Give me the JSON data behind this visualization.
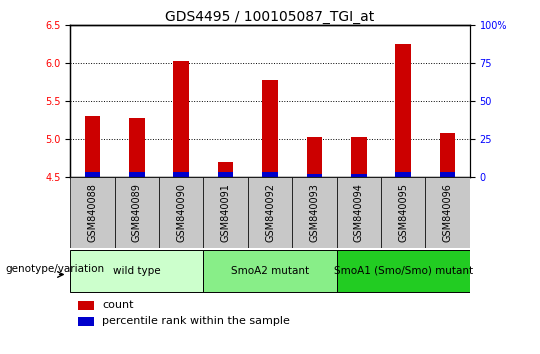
{
  "title": "GDS4495 / 100105087_TGI_at",
  "samples": [
    "GSM840088",
    "GSM840089",
    "GSM840090",
    "GSM840091",
    "GSM840092",
    "GSM840093",
    "GSM840094",
    "GSM840095",
    "GSM840096"
  ],
  "count_values": [
    5.3,
    5.28,
    6.02,
    4.7,
    5.78,
    5.02,
    5.02,
    6.25,
    5.08
  ],
  "percentile_values": [
    3,
    3,
    3,
    3,
    3,
    2,
    2,
    3,
    3
  ],
  "bar_color_red": "#cc0000",
  "bar_color_blue": "#0000cc",
  "ylim_left": [
    4.5,
    6.5
  ],
  "ylim_right": [
    0,
    100
  ],
  "yticks_left": [
    4.5,
    5.0,
    5.5,
    6.0,
    6.5
  ],
  "yticks_right": [
    0,
    25,
    50,
    75,
    100
  ],
  "ytick_labels_right": [
    "0",
    "25",
    "50",
    "75",
    "100%"
  ],
  "groups": [
    {
      "label": "wild type",
      "indices": [
        0,
        1,
        2
      ],
      "color": "#ccffcc"
    },
    {
      "label": "SmoA2 mutant",
      "indices": [
        3,
        4,
        5
      ],
      "color": "#88ee88"
    },
    {
      "label": "SmoA1 (Smo/Smo) mutant",
      "indices": [
        6,
        7,
        8
      ],
      "color": "#22cc22"
    }
  ],
  "genotype_label": "genotype/variation",
  "legend_count": "count",
  "legend_percentile": "percentile rank within the sample",
  "bar_width": 0.35,
  "bg_color_bar": "#c8c8c8",
  "title_fontsize": 10,
  "tick_fontsize": 7,
  "label_fontsize": 8
}
